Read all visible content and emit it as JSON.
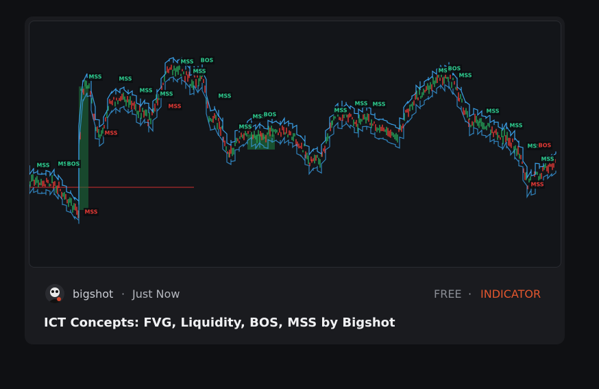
{
  "card": {
    "thumbnail": {
      "labels": [
        "MSS",
        "MSS",
        "MSS",
        "MSS",
        "MSS",
        "BOS",
        "MSS",
        "MSS",
        "MSS",
        "MSS",
        "MSS",
        "BOS",
        "MSS",
        "MSS",
        "MSS",
        "BOS",
        "MSS",
        "MSS",
        "MSS",
        "MSS",
        "BOS",
        "MSS",
        "MSS",
        "MSS",
        "MSS",
        "BOS",
        "MSS",
        "MSS",
        "MSS"
      ]
    },
    "author": "bigshot",
    "meta_separator": "·",
    "time": "Just Now",
    "price": "FREE",
    "script_type": "INDICATOR",
    "title": "ICT Concepts: FVG, Liquidity, BOS, MSS by Bigshot"
  }
}
